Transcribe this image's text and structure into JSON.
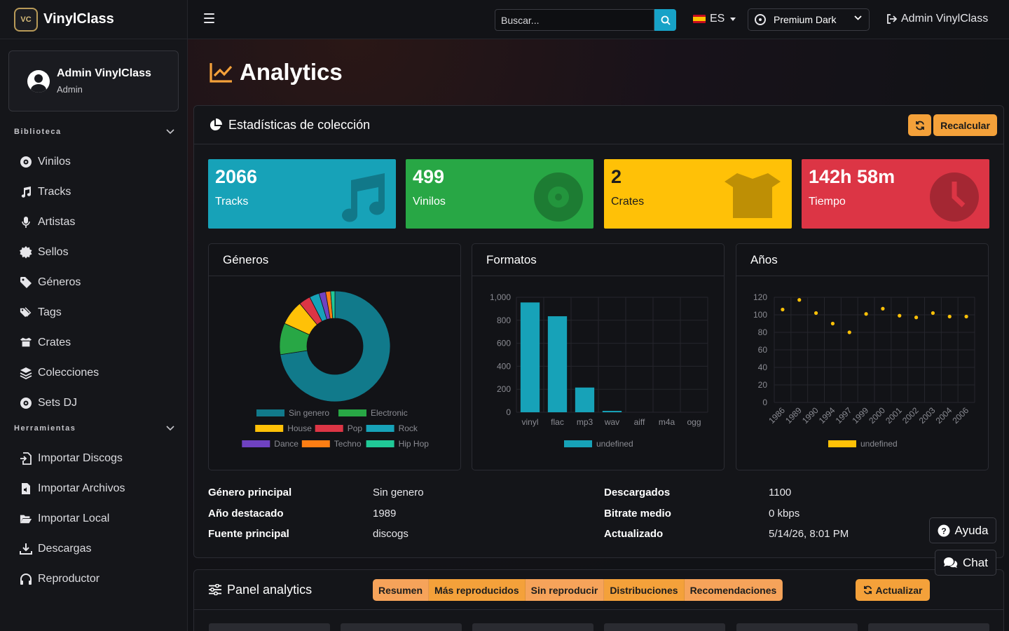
{
  "brand": {
    "name": "VinylClass",
    "logo_text": "VC"
  },
  "user": {
    "name": "Admin VinylClass",
    "role": "Admin"
  },
  "sidebar": {
    "sections": [
      {
        "title": "Biblioteca",
        "items": [
          {
            "label": "Vinilos",
            "icon": "disc-icon"
          },
          {
            "label": "Tracks",
            "icon": "music-icon"
          },
          {
            "label": "Artistas",
            "icon": "microphone-icon"
          },
          {
            "label": "Sellos",
            "icon": "certificate-icon"
          },
          {
            "label": "Géneros",
            "icon": "tag-icon"
          },
          {
            "label": "Tags",
            "icon": "tags-icon"
          },
          {
            "label": "Crates",
            "icon": "box-open-icon"
          },
          {
            "label": "Colecciones",
            "icon": "layers-icon"
          },
          {
            "label": "Sets DJ",
            "icon": "record-icon"
          }
        ]
      },
      {
        "title": "Herramientas",
        "items": [
          {
            "label": "Importar Discogs",
            "icon": "file-import-icon"
          },
          {
            "label": "Importar Archivos",
            "icon": "file-audio-icon"
          },
          {
            "label": "Importar Local",
            "icon": "folder-open-icon"
          },
          {
            "label": "Descargas",
            "icon": "download-icon"
          },
          {
            "label": "Reproductor",
            "icon": "headphones-icon"
          }
        ]
      }
    ]
  },
  "topbar": {
    "search_placeholder": "Buscar...",
    "language": "ES",
    "theme": "Premium Dark",
    "admin_link": "Admin VinylClass"
  },
  "page": {
    "title": "Analytics"
  },
  "stats_card": {
    "title": "Estadísticas de colección",
    "recalc_label": "Recalcular",
    "stats": [
      {
        "value": "2066",
        "label": "Tracks",
        "color": "#17a2b8",
        "icon": "music-icon"
      },
      {
        "value": "499",
        "label": "Vinilos",
        "color": "#28a745",
        "icon": "disc-icon"
      },
      {
        "value": "2",
        "label": "Crates",
        "color": "#ffc107",
        "icon": "box-open-icon"
      },
      {
        "value": "142h 58m",
        "label": "Tiempo",
        "color": "#dc3545",
        "icon": "clock-icon"
      }
    ]
  },
  "charts_titles": {
    "genres": "Géneros",
    "formats": "Formatos",
    "years": "Años"
  },
  "chart_data": [
    {
      "type": "pie",
      "title": "Géneros",
      "donut": true,
      "categories": [
        "Sin genero",
        "Electronic",
        "House",
        "Pop",
        "Rock",
        "Dance",
        "Techno",
        "Hip Hop"
      ],
      "values": [
        1500,
        190,
        150,
        70,
        60,
        40,
        30,
        26
      ],
      "colors": [
        "#117a8b",
        "#28a745",
        "#ffc107",
        "#dc3545",
        "#17a2b8",
        "#6f42c1",
        "#fd7e14",
        "#20c997"
      ],
      "legend": "bottom"
    },
    {
      "type": "bar",
      "title": "Formatos",
      "categories": [
        "vinyl",
        "flac",
        "mp3",
        "wav",
        "aiff",
        "m4a",
        "ogg"
      ],
      "series": [
        {
          "name": "undefined",
          "values": [
            955,
            835,
            215,
            12,
            0,
            0,
            0
          ]
        }
      ],
      "ylim": [
        0,
        1000
      ],
      "yticks": [
        "0",
        "200",
        "400",
        "600",
        "800",
        "1,000"
      ],
      "color": "#17a2b8",
      "legend": "bottom",
      "grid": true
    },
    {
      "type": "scatter",
      "title": "Años",
      "categories": [
        "1986",
        "1989",
        "1990",
        "1994",
        "1997",
        "1999",
        "2000",
        "2001",
        "2002",
        "2003",
        "2004",
        "2006"
      ],
      "series": [
        {
          "name": "undefined",
          "values": [
            106,
            117,
            102,
            90,
            80,
            101,
            107,
            99,
            97,
            102,
            98,
            98
          ]
        }
      ],
      "ylim": [
        0,
        120
      ],
      "yticks": [
        "0",
        "20",
        "40",
        "60",
        "80",
        "100",
        "120"
      ],
      "color": "#ffc107",
      "legend": "bottom",
      "grid": true
    }
  ],
  "info": {
    "left": [
      {
        "key": "Género principal",
        "value": "Sin genero"
      },
      {
        "key": "Año destacado",
        "value": "1989"
      },
      {
        "key": "Fuente principal",
        "value": "discogs"
      }
    ],
    "right": [
      {
        "key": "Descargados",
        "value": "1100"
      },
      {
        "key": "Bitrate medio",
        "value": "0 kbps"
      },
      {
        "key": "Actualizado",
        "value": "5/14/26, 8:01 PM"
      }
    ]
  },
  "floating": {
    "help": "Ayuda",
    "chat": "Chat"
  },
  "panel": {
    "title": "Panel analytics",
    "tabs": [
      "Resumen",
      "Más reproducidos",
      "Sin reproducir",
      "Distribuciones",
      "Recomendaciones"
    ],
    "update_label": "Actualizar"
  }
}
